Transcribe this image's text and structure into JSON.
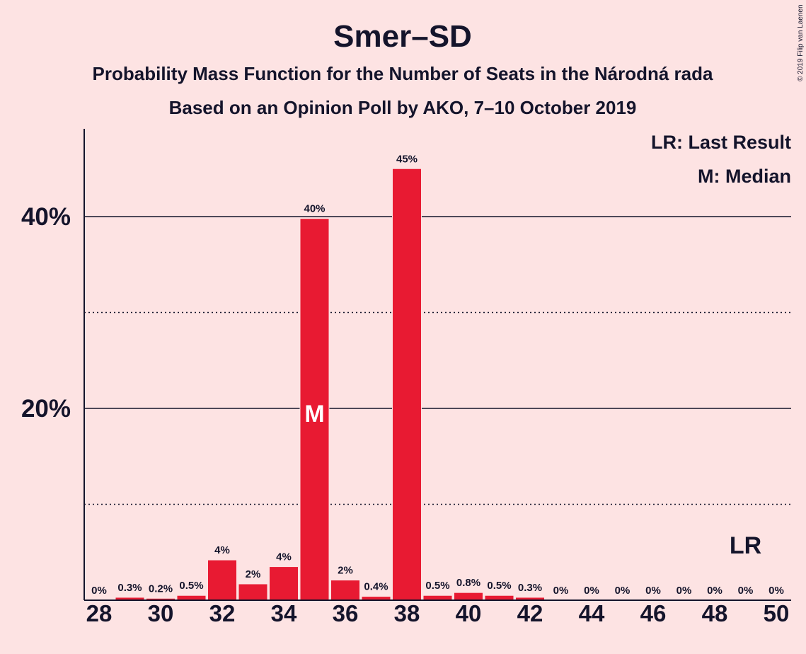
{
  "copyright": "© 2019 Filip van Laenen",
  "chart_data": {
    "type": "bar",
    "title": "Smer–SD",
    "subtitle": "Probability Mass Function for the Number of Seats in the Národná rada",
    "subtitle2": "Based on an Opinion Poll by AKO, 7–10 October 2019",
    "legend": {
      "lr": "LR: Last Result",
      "m": "M: Median"
    },
    "categories": [
      28,
      29,
      30,
      31,
      32,
      33,
      34,
      35,
      36,
      37,
      38,
      39,
      40,
      41,
      42,
      43,
      44,
      45,
      46,
      47,
      48,
      49,
      50
    ],
    "values": [
      0,
      0.3,
      0.2,
      0.5,
      4.2,
      1.7,
      3.5,
      39.8,
      2.1,
      0.4,
      45.0,
      0.5,
      0.8,
      0.5,
      0.3,
      0,
      0,
      0,
      0,
      0,
      0,
      0,
      0
    ],
    "value_labels": [
      "0%",
      "0.3%",
      "0.2%",
      "0.5%",
      "4%",
      "2%",
      "4%",
      "40%",
      "2%",
      "0.4%",
      "45%",
      "0.5%",
      "0.8%",
      "0.5%",
      "0.3%",
      "0%",
      "0%",
      "0%",
      "0%",
      "0%",
      "0%",
      "0%",
      "0%"
    ],
    "x_tick_labels": [
      "28",
      "30",
      "32",
      "34",
      "36",
      "38",
      "40",
      "42",
      "44",
      "46",
      "48",
      "50"
    ],
    "y_tick_labels": [
      "20%",
      "40%"
    ],
    "ylim": [
      0,
      49
    ],
    "y_major_gridlines": [
      20,
      40
    ],
    "y_minor_gridlines": [
      10,
      30
    ],
    "median_seat": 35,
    "median_marker": "M",
    "last_result_seat": 49,
    "last_result_marker": "LR",
    "bar_color": "#E81A32"
  }
}
